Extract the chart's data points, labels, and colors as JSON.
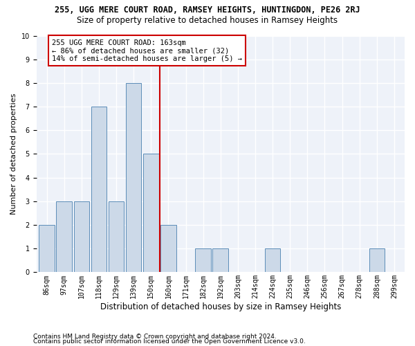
{
  "title": "255, UGG MERE COURT ROAD, RAMSEY HEIGHTS, HUNTINGDON, PE26 2RJ",
  "subtitle": "Size of property relative to detached houses in Ramsey Heights",
  "xlabel": "Distribution of detached houses by size in Ramsey Heights",
  "ylabel": "Number of detached properties",
  "categories": [
    "86sqm",
    "97sqm",
    "107sqm",
    "118sqm",
    "129sqm",
    "139sqm",
    "150sqm",
    "160sqm",
    "171sqm",
    "182sqm",
    "192sqm",
    "203sqm",
    "214sqm",
    "224sqm",
    "235sqm",
    "246sqm",
    "256sqm",
    "267sqm",
    "278sqm",
    "288sqm",
    "299sqm"
  ],
  "values": [
    2,
    3,
    3,
    7,
    3,
    8,
    5,
    2,
    0,
    1,
    1,
    0,
    0,
    1,
    0,
    0,
    0,
    0,
    0,
    1,
    0
  ],
  "bar_color": "#ccd9e8",
  "bar_edge_color": "#5b8db8",
  "vline_x": 7,
  "vline_color": "#cc0000",
  "annotation_text": "255 UGG MERE COURT ROAD: 163sqm\n← 86% of detached houses are smaller (32)\n14% of semi-detached houses are larger (5) →",
  "annotation_box_color": "#ffffff",
  "annotation_box_edge": "#cc0000",
  "ylim": [
    0,
    10
  ],
  "yticks": [
    0,
    1,
    2,
    3,
    4,
    5,
    6,
    7,
    8,
    9,
    10
  ],
  "footer1": "Contains HM Land Registry data © Crown copyright and database right 2024.",
  "footer2": "Contains public sector information licensed under the Open Government Licence v3.0.",
  "bg_color": "#eef2f9",
  "grid_color": "#ffffff",
  "title_fontsize": 8.5,
  "subtitle_fontsize": 8.5,
  "xlabel_fontsize": 8.5,
  "ylabel_fontsize": 8,
  "tick_fontsize": 7,
  "annotation_fontsize": 7.5,
  "footer_fontsize": 6.5
}
